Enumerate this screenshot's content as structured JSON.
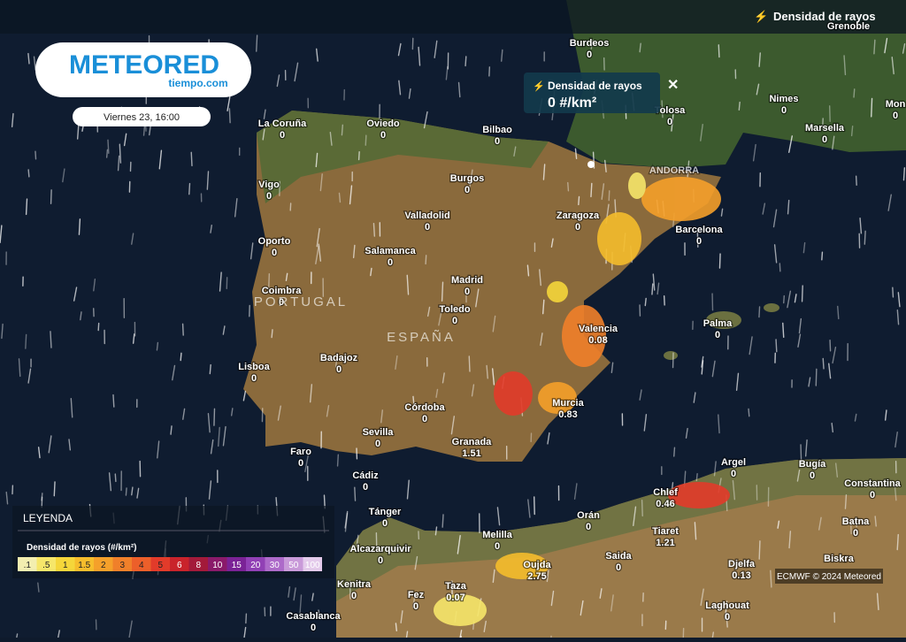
{
  "logo": {
    "brand": "METEORED",
    "site": "tiempo.com"
  },
  "date": "Viernes 23, 16:00",
  "layer_title": "Densidad de rayos",
  "popup": {
    "title": "Densidad de rayos",
    "value": "0 #/km²"
  },
  "countries": [
    "PORTUGAL",
    "ESPAÑA"
  ],
  "place_labels": [
    "Grenoble",
    "ANDORRA",
    "Biskra"
  ],
  "cities": [
    {
      "name": "Burdeos",
      "value": "0"
    },
    {
      "name": "Tolosa",
      "value": "0"
    },
    {
      "name": "Nimes",
      "value": "0"
    },
    {
      "name": "Marsella",
      "value": "0"
    },
    {
      "name": "Mon",
      "value": "0"
    },
    {
      "name": "La Coruña",
      "value": "0"
    },
    {
      "name": "Oviedo",
      "value": "0"
    },
    {
      "name": "Bilbao",
      "value": "0"
    },
    {
      "name": "Burgos",
      "value": "0"
    },
    {
      "name": "Zaragoza",
      "value": "0"
    },
    {
      "name": "Barcelona",
      "value": "0"
    },
    {
      "name": "Vigo",
      "value": "0"
    },
    {
      "name": "Valladolid",
      "value": "0"
    },
    {
      "name": "Oporto",
      "value": "0"
    },
    {
      "name": "Salamanca",
      "value": "0"
    },
    {
      "name": "Madrid",
      "value": "0"
    },
    {
      "name": "Coimbra",
      "value": "0"
    },
    {
      "name": "Toledo",
      "value": "0"
    },
    {
      "name": "Valencia",
      "value": "0.08"
    },
    {
      "name": "Palma",
      "value": "0"
    },
    {
      "name": "Lisboa",
      "value": "0"
    },
    {
      "name": "Badajoz",
      "value": "0"
    },
    {
      "name": "Murcia",
      "value": "0.83"
    },
    {
      "name": "Córdoba",
      "value": "0"
    },
    {
      "name": "Sevilla",
      "value": "0"
    },
    {
      "name": "Granada",
      "value": "1.51"
    },
    {
      "name": "Faro",
      "value": "0"
    },
    {
      "name": "Cádiz",
      "value": "0"
    },
    {
      "name": "Argel",
      "value": "0"
    },
    {
      "name": "Bugía",
      "value": "0"
    },
    {
      "name": "Constantina",
      "value": "0"
    },
    {
      "name": "Chlef",
      "value": "0.46"
    },
    {
      "name": "Tánger",
      "value": "0"
    },
    {
      "name": "Orán",
      "value": "0"
    },
    {
      "name": "Batna",
      "value": "0"
    },
    {
      "name": "Tiaret",
      "value": "1.21"
    },
    {
      "name": "Melilla",
      "value": "0"
    },
    {
      "name": "Alcazarquivir",
      "value": "0"
    },
    {
      "name": "Saida",
      "value": "0"
    },
    {
      "name": "Oujda",
      "value": "2.75"
    },
    {
      "name": "Djelfa",
      "value": "0.13"
    },
    {
      "name": "Kenitra",
      "value": "0"
    },
    {
      "name": "Taza",
      "value": "0.07"
    },
    {
      "name": "Fez",
      "value": "0"
    },
    {
      "name": "Laghouat",
      "value": "0"
    },
    {
      "name": "Casablanca",
      "value": "0"
    }
  ],
  "legend": {
    "heading": "LEYENDA",
    "title": "Densidad de rayos (#/km²)",
    "items": [
      {
        "label": ".1",
        "color": "#f3eeb0"
      },
      {
        "label": ".5",
        "color": "#f6e66a"
      },
      {
        "label": "1",
        "color": "#f5d63a"
      },
      {
        "label": "1.5",
        "color": "#f6bd2c"
      },
      {
        "label": "2",
        "color": "#f5a02a"
      },
      {
        "label": "3",
        "color": "#f0802a"
      },
      {
        "label": "4",
        "color": "#ec5f2a"
      },
      {
        "label": "5",
        "color": "#e23b2a"
      },
      {
        "label": "6",
        "color": "#c9232b"
      },
      {
        "label": "8",
        "color": "#a31a3a"
      },
      {
        "label": "10",
        "color": "#8a1a6a"
      },
      {
        "label": "15",
        "color": "#7a2296"
      },
      {
        "label": "20",
        "color": "#9140b5"
      },
      {
        "label": "30",
        "color": "#ad6ac9"
      },
      {
        "label": "50",
        "color": "#c99ad9"
      },
      {
        "label": "100",
        "color": "#e4cbeb"
      }
    ]
  },
  "credit": "ECMWF © 2024 Meteored"
}
